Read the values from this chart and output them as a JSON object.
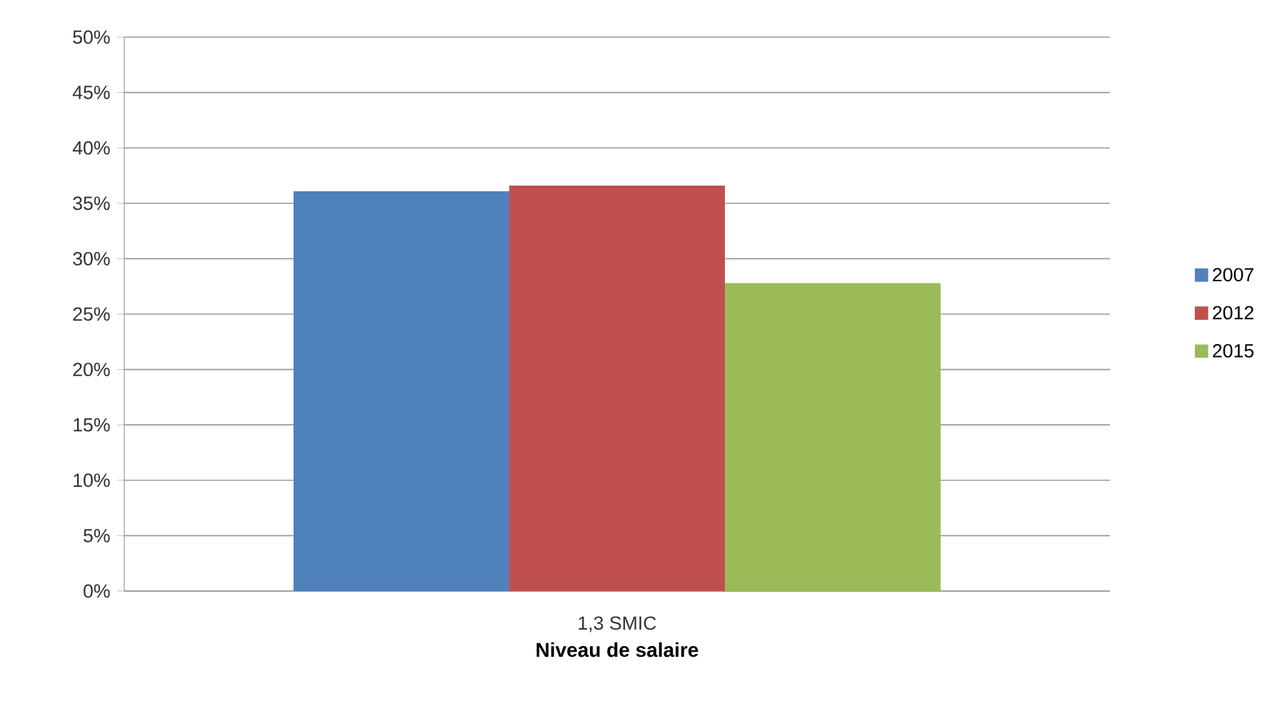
{
  "chart_data": {
    "type": "bar",
    "xlabel": "Niveau de salaire",
    "categories": [
      "1,3 SMIC"
    ],
    "series": [
      {
        "name": "2007",
        "color": "#4f81bd",
        "values": [
          36.1
        ]
      },
      {
        "name": "2012",
        "color": "#c0504d",
        "values": [
          36.6
        ]
      },
      {
        "name": "2015",
        "color": "#9bbb59",
        "values": [
          27.8
        ]
      }
    ],
    "ylim": [
      0,
      50
    ],
    "yticks": [
      {
        "value": 0,
        "label": "0%"
      },
      {
        "value": 5,
        "label": "5%"
      },
      {
        "value": 10,
        "label": "10%"
      },
      {
        "value": 15,
        "label": "15%"
      },
      {
        "value": 20,
        "label": "20%"
      },
      {
        "value": 25,
        "label": "25%"
      },
      {
        "value": 30,
        "label": "30%"
      },
      {
        "value": 35,
        "label": "35%"
      },
      {
        "value": 40,
        "label": "40%"
      },
      {
        "value": 45,
        "label": "45%"
      },
      {
        "value": 50,
        "label": "50%"
      }
    ],
    "grid": "y",
    "legend": "right"
  }
}
